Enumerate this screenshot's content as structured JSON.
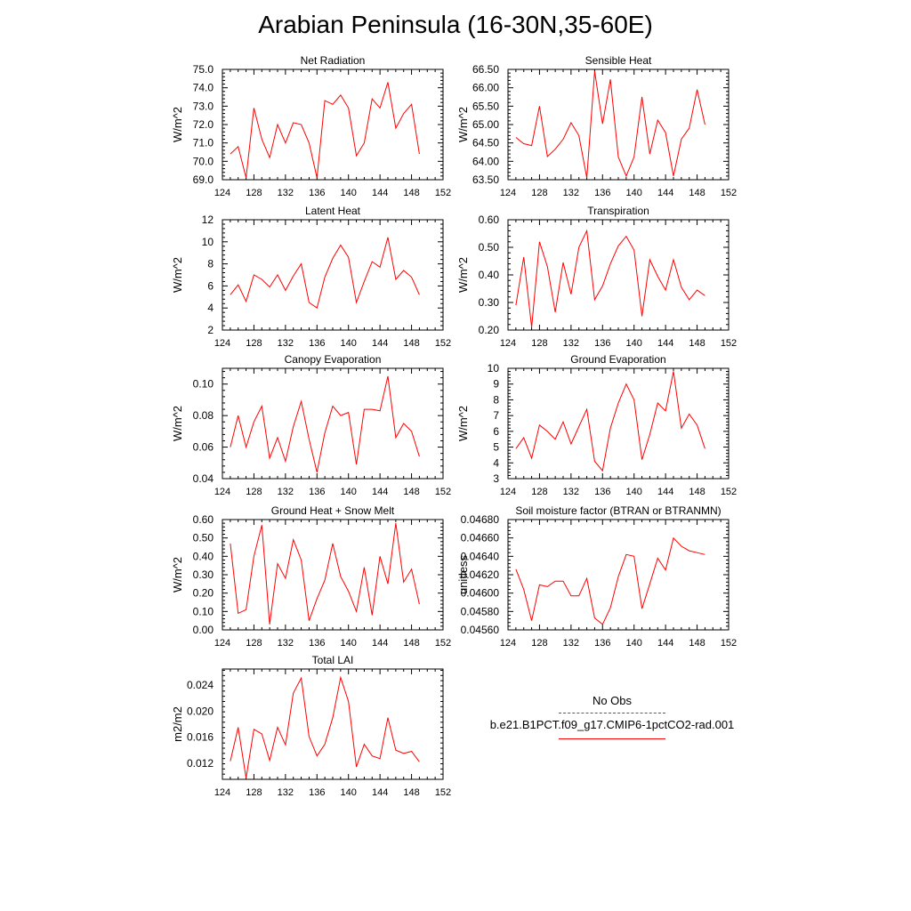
{
  "title": "Arabian Peninsula (16-30N,35-60E)",
  "colors": {
    "model": "#ff0000",
    "obs": "#4a4ad8",
    "axis": "#000000"
  },
  "legend": {
    "obs_label": "No Obs",
    "model_label": "b.e21.B1PCT.f09_g17.CMIP6-1pctCO2-rad.001"
  },
  "chart_data": [
    {
      "type": "line",
      "title": "Net Radiation",
      "ylabel": "W/m^2",
      "xlim": [
        124,
        152
      ],
      "ylim": [
        69.0,
        75.0
      ],
      "xticks": [
        "124",
        "128",
        "132",
        "136",
        "140",
        "144",
        "148",
        "152"
      ],
      "yticks": [
        "69.0",
        "70.0",
        "71.0",
        "72.0",
        "73.0",
        "74.0",
        "75.0"
      ],
      "x": [
        125,
        126,
        127,
        128,
        129,
        130,
        131,
        132,
        133,
        134,
        135,
        136,
        137,
        138,
        139,
        140,
        141,
        142,
        143,
        144,
        145,
        146,
        147,
        148,
        149
      ],
      "values": [
        70.4,
        70.8,
        69.1,
        72.9,
        71.2,
        70.2,
        72.0,
        71.0,
        72.1,
        72.0,
        71.0,
        69.1,
        73.3,
        73.1,
        73.6,
        72.9,
        70.3,
        71.0,
        73.4,
        72.9,
        74.3,
        71.8,
        72.6,
        73.1,
        70.4
      ]
    },
    {
      "type": "line",
      "title": "Sensible Heat",
      "ylabel": "W/m^2",
      "xlim": [
        124,
        152
      ],
      "ylim": [
        63.5,
        66.5
      ],
      "xticks": [
        "124",
        "128",
        "132",
        "136",
        "140",
        "144",
        "148",
        "152"
      ],
      "yticks": [
        "63.50",
        "64.00",
        "64.50",
        "65.00",
        "65.50",
        "66.00",
        "66.50"
      ],
      "x": [
        125,
        126,
        127,
        128,
        129,
        130,
        131,
        132,
        133,
        134,
        135,
        136,
        137,
        138,
        139,
        140,
        141,
        142,
        143,
        144,
        145,
        146,
        147,
        148,
        149
      ],
      "values": [
        64.65,
        64.48,
        64.43,
        65.5,
        64.13,
        64.33,
        64.6,
        65.05,
        64.7,
        63.55,
        66.45,
        65.02,
        66.23,
        64.12,
        63.6,
        64.12,
        65.75,
        64.2,
        65.12,
        64.78,
        63.6,
        64.6,
        64.9,
        65.95,
        65.0
      ]
    },
    {
      "type": "line",
      "title": "Latent Heat",
      "ylabel": "W/m^2",
      "xlim": [
        124,
        152
      ],
      "ylim": [
        2,
        12
      ],
      "xticks": [
        "124",
        "128",
        "132",
        "136",
        "140",
        "144",
        "148",
        "152"
      ],
      "yticks": [
        "2",
        "4",
        "6",
        "8",
        "10",
        "12"
      ],
      "x": [
        125,
        126,
        127,
        128,
        129,
        130,
        131,
        132,
        133,
        134,
        135,
        136,
        137,
        138,
        139,
        140,
        141,
        142,
        143,
        144,
        145,
        146,
        147,
        148,
        149
      ],
      "values": [
        5.2,
        6.1,
        4.6,
        7.0,
        6.6,
        5.9,
        7.0,
        5.6,
        6.9,
        8.0,
        4.5,
        4.0,
        6.8,
        8.5,
        9.7,
        8.6,
        4.5,
        6.4,
        8.2,
        7.7,
        10.4,
        6.6,
        7.4,
        6.8,
        5.2
      ]
    },
    {
      "type": "line",
      "title": "Transpiration",
      "ylabel": "W/m^2",
      "xlim": [
        124,
        152
      ],
      "ylim": [
        0.2,
        0.6
      ],
      "xticks": [
        "124",
        "128",
        "132",
        "136",
        "140",
        "144",
        "148",
        "152"
      ],
      "yticks": [
        "0.20",
        "0.30",
        "0.40",
        "0.50",
        "0.60"
      ],
      "x": [
        125,
        126,
        127,
        128,
        129,
        130,
        131,
        132,
        133,
        134,
        135,
        136,
        137,
        138,
        139,
        140,
        141,
        142,
        143,
        144,
        145,
        146,
        147,
        148,
        149
      ],
      "values": [
        0.29,
        0.465,
        0.21,
        0.52,
        0.43,
        0.265,
        0.445,
        0.33,
        0.5,
        0.56,
        0.31,
        0.36,
        0.44,
        0.505,
        0.54,
        0.49,
        0.25,
        0.455,
        0.395,
        0.345,
        0.455,
        0.355,
        0.31,
        0.345,
        0.325
      ]
    },
    {
      "type": "line",
      "title": "Canopy Evaporation",
      "ylabel": "W/m^2",
      "xlim": [
        124,
        152
      ],
      "ylim": [
        0.04,
        0.11
      ],
      "xticks": [
        "124",
        "128",
        "132",
        "136",
        "140",
        "144",
        "148",
        "152"
      ],
      "yticks": [
        "0.04",
        "0.06",
        "0.08",
        "0.10"
      ],
      "x": [
        125,
        126,
        127,
        128,
        129,
        130,
        131,
        132,
        133,
        134,
        135,
        136,
        137,
        138,
        139,
        140,
        141,
        142,
        143,
        144,
        145,
        146,
        147,
        148,
        149
      ],
      "values": [
        0.06,
        0.08,
        0.06,
        0.076,
        0.086,
        0.053,
        0.066,
        0.051,
        0.073,
        0.089,
        0.065,
        0.044,
        0.069,
        0.086,
        0.08,
        0.082,
        0.049,
        0.084,
        0.084,
        0.083,
        0.105,
        0.066,
        0.075,
        0.07,
        0.054
      ]
    },
    {
      "type": "line",
      "title": "Ground Evaporation",
      "ylabel": "W/m^2",
      "xlim": [
        124,
        152
      ],
      "ylim": [
        3,
        10
      ],
      "xticks": [
        "124",
        "128",
        "132",
        "136",
        "140",
        "144",
        "148",
        "152"
      ],
      "yticks": [
        "3",
        "4",
        "5",
        "6",
        "7",
        "8",
        "9",
        "10"
      ],
      "x": [
        125,
        126,
        127,
        128,
        129,
        130,
        131,
        132,
        133,
        134,
        135,
        136,
        137,
        138,
        139,
        140,
        141,
        142,
        143,
        144,
        145,
        146,
        147,
        148,
        149
      ],
      "values": [
        4.9,
        5.6,
        4.3,
        6.4,
        6.0,
        5.5,
        6.6,
        5.2,
        6.3,
        7.4,
        4.1,
        3.5,
        6.2,
        7.8,
        9.0,
        8.0,
        4.2,
        5.8,
        7.8,
        7.3,
        9.8,
        6.2,
        7.1,
        6.4,
        4.9
      ]
    },
    {
      "type": "line",
      "title": "Ground Heat + Snow Melt",
      "ylabel": "W/m^2",
      "xlim": [
        124,
        152
      ],
      "ylim": [
        0.0,
        0.6
      ],
      "xticks": [
        "124",
        "128",
        "132",
        "136",
        "140",
        "144",
        "148",
        "152"
      ],
      "yticks": [
        "0.00",
        "0.10",
        "0.20",
        "0.30",
        "0.40",
        "0.50",
        "0.60"
      ],
      "x": [
        125,
        126,
        127,
        128,
        129,
        130,
        131,
        132,
        133,
        134,
        135,
        136,
        137,
        138,
        139,
        140,
        141,
        142,
        143,
        144,
        145,
        146,
        147,
        148,
        149
      ],
      "values": [
        0.47,
        0.09,
        0.11,
        0.4,
        0.57,
        0.03,
        0.36,
        0.28,
        0.49,
        0.38,
        0.05,
        0.17,
        0.27,
        0.47,
        0.29,
        0.21,
        0.1,
        0.34,
        0.08,
        0.4,
        0.25,
        0.58,
        0.26,
        0.33,
        0.14
      ]
    },
    {
      "type": "line",
      "title": "Soil moisture factor (BTRAN or BTRANMN)",
      "ylabel": "unitless",
      "xlim": [
        124,
        152
      ],
      "ylim": [
        0.0456,
        0.0468
      ],
      "xticks": [
        "124",
        "128",
        "132",
        "136",
        "140",
        "144",
        "148",
        "152"
      ],
      "yticks": [
        "0.04560",
        "0.04580",
        "0.04600",
        "0.04620",
        "0.04640",
        "0.04660",
        "0.04680"
      ],
      "x": [
        125,
        126,
        127,
        128,
        129,
        130,
        131,
        132,
        133,
        134,
        135,
        136,
        137,
        138,
        139,
        140,
        141,
        142,
        143,
        144,
        145,
        146,
        147,
        148,
        149
      ],
      "values": [
        0.04626,
        0.04604,
        0.0457,
        0.04609,
        0.04607,
        0.04613,
        0.04613,
        0.04597,
        0.04597,
        0.04616,
        0.04573,
        0.04566,
        0.04584,
        0.04618,
        0.04642,
        0.0464,
        0.04583,
        0.0461,
        0.04638,
        0.04625,
        0.0466,
        0.04651,
        0.04646,
        0.04644,
        0.04642
      ]
    },
    {
      "type": "line",
      "title": "Total LAI",
      "ylabel": "m2/m2",
      "xlim": [
        124,
        152
      ],
      "ylim": [
        0.0095,
        0.0265
      ],
      "xticks": [
        "124",
        "128",
        "132",
        "136",
        "140",
        "144",
        "148",
        "152"
      ],
      "yticks": [
        "0.012",
        "0.016",
        "0.020",
        "0.024"
      ],
      "x": [
        125,
        126,
        127,
        128,
        129,
        130,
        131,
        132,
        133,
        134,
        135,
        136,
        137,
        138,
        139,
        140,
        141,
        142,
        143,
        144,
        145,
        146,
        147,
        148,
        149
      ],
      "values": [
        0.0123,
        0.0175,
        0.0097,
        0.0172,
        0.0165,
        0.0124,
        0.0175,
        0.0148,
        0.0228,
        0.0251,
        0.0161,
        0.0131,
        0.0149,
        0.019,
        0.0252,
        0.0215,
        0.0114,
        0.0149,
        0.0131,
        0.0127,
        0.019,
        0.014,
        0.0135,
        0.0138,
        0.0122
      ]
    }
  ]
}
